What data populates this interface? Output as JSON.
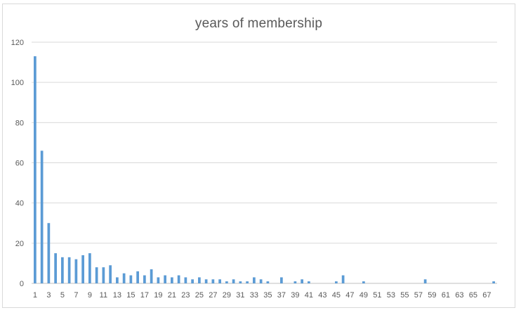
{
  "chart_data": {
    "type": "bar",
    "title": "years of membership",
    "xlabel": "",
    "ylabel": "",
    "ylim": [
      0,
      120
    ],
    "yticks": [
      0,
      20,
      40,
      60,
      80,
      100,
      120
    ],
    "grid": true,
    "legend": "none",
    "bar_color": "#5b9bd5",
    "categories": [
      1,
      2,
      3,
      4,
      5,
      6,
      7,
      8,
      9,
      10,
      11,
      12,
      13,
      14,
      15,
      16,
      17,
      18,
      19,
      20,
      21,
      22,
      23,
      24,
      25,
      26,
      27,
      28,
      29,
      30,
      31,
      32,
      33,
      34,
      35,
      36,
      37,
      38,
      39,
      40,
      41,
      42,
      43,
      44,
      45,
      46,
      47,
      48,
      49,
      50,
      51,
      52,
      53,
      54,
      55,
      56,
      57,
      58,
      59,
      60,
      61,
      62,
      63,
      64,
      65,
      66,
      67,
      68
    ],
    "xtick_labels": [
      "1",
      "3",
      "5",
      "7",
      "9",
      "11",
      "13",
      "15",
      "17",
      "19",
      "21",
      "23",
      "25",
      "27",
      "29",
      "31",
      "33",
      "35",
      "37",
      "39",
      "41",
      "43",
      "45",
      "47",
      "49",
      "51",
      "53",
      "55",
      "57",
      "59",
      "61",
      "63",
      "65",
      "67"
    ],
    "values": [
      113,
      66,
      30,
      15,
      13,
      13,
      12,
      14,
      15,
      8,
      8,
      9,
      3,
      5,
      4,
      6,
      4,
      7,
      3,
      4,
      3,
      4,
      3,
      2,
      3,
      2,
      2,
      2,
      1,
      2,
      1,
      1,
      3,
      2,
      1,
      0,
      3,
      0,
      1,
      2,
      1,
      0,
      0,
      0,
      1,
      4,
      0,
      0,
      1,
      0,
      0,
      0,
      0,
      0,
      0,
      0,
      0,
      2,
      0,
      0,
      0,
      0,
      0,
      0,
      0,
      0,
      0,
      1
    ]
  }
}
